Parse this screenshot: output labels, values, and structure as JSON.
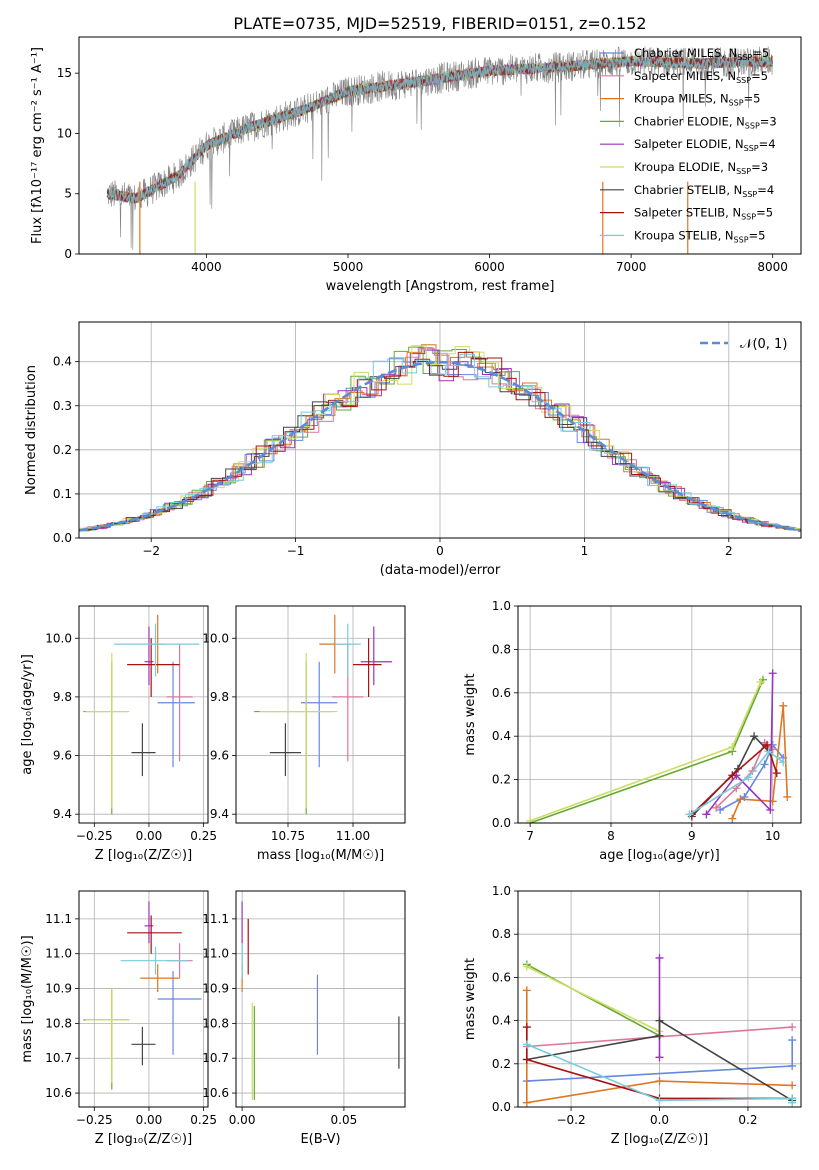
{
  "chart_data": [
    {
      "id": "spectrum",
      "type": "line",
      "title": "PLATE=0735, MJD=52519, FIBERID=0151, z=0.152",
      "xlabel": "wavelength [Angstrom, rest frame]",
      "ylabel": "Flux [fλ10⁻¹⁷ erg cm⁻² s⁻¹ A⁻¹]",
      "xlim": [
        3100,
        8200
      ],
      "ylim": [
        0,
        18
      ],
      "xticks": [
        4000,
        5000,
        6000,
        7000,
        8000
      ],
      "yticks": [
        0,
        5,
        10,
        15
      ],
      "data_trace": {
        "name": "data",
        "color": "#808080",
        "x_range": [
          3300,
          8000
        ],
        "approx_envelope": [
          [
            3300,
            5
          ],
          [
            3500,
            4.6
          ],
          [
            3800,
            6.5
          ],
          [
            4000,
            9
          ],
          [
            4300,
            10.5
          ],
          [
            4700,
            12
          ],
          [
            5000,
            13.5
          ],
          [
            5500,
            14.3
          ],
          [
            6000,
            15.2
          ],
          [
            6500,
            15.5
          ],
          [
            7000,
            16
          ],
          [
            7500,
            15.8
          ],
          [
            8000,
            16
          ]
        ]
      },
      "legend_position": "upper right",
      "series": [
        {
          "name": "Chabrier MILES, N",
          "sub": "SSP",
          "suffix": "=5",
          "color": "#6688dd"
        },
        {
          "name": "Salpeter MILES, N",
          "sub": "SSP",
          "suffix": "=5",
          "color": "#dd7799"
        },
        {
          "name": "Kroupa MILES, N",
          "sub": "SSP",
          "suffix": "=5",
          "color": "#dd7722"
        },
        {
          "name": "Chabrier ELODIE, N",
          "sub": "SSP",
          "suffix": "=3",
          "color": "#66aa33"
        },
        {
          "name": "Salpeter ELODIE, N",
          "sub": "SSP",
          "suffix": "=4",
          "color": "#9933bb"
        },
        {
          "name": "Kroupa ELODIE, N",
          "sub": "SSP",
          "suffix": "=3",
          "color": "#ccdd66"
        },
        {
          "name": "Chabrier STELIB, N",
          "sub": "SSP",
          "suffix": "=4",
          "color": "#444444"
        },
        {
          "name": "Salpeter STELIB, N",
          "sub": "SSP",
          "suffix": "=5",
          "color": "#aa1111"
        },
        {
          "name": "Kroupa STELIB, N",
          "sub": "SSP",
          "suffix": "=5",
          "color": "#77ccdd"
        }
      ]
    },
    {
      "id": "residuals",
      "type": "histogram",
      "xlabel": "(data-model)/error",
      "ylabel": "Normed distribution",
      "xlim": [
        -2.5,
        2.5
      ],
      "ylim": [
        0,
        0.49
      ],
      "xticks": [
        -2,
        -1,
        0,
        1,
        2
      ],
      "xtick_labels": [
        "−2",
        "−1",
        "0",
        "1",
        "2"
      ],
      "yticks": [
        0.0,
        0.1,
        0.2,
        0.3,
        0.4
      ],
      "grid": true,
      "legend_position": "upper right",
      "legend_label": "𝒩(0, 1)",
      "gaussian": {
        "mean": 0,
        "sigma": 1,
        "color": "#5b8bd6"
      },
      "bin_width": 0.1
    },
    {
      "id": "age-vs-Z",
      "type": "errorbar",
      "xlabel": "Z [log₁₀(Z/Z☉)]",
      "ylabel": "age  [log₁₀(age/yr)]",
      "xlim": [
        -0.32,
        0.27
      ],
      "ylim": [
        9.37,
        10.11
      ],
      "xticks": [
        -0.25,
        0.0,
        0.25
      ],
      "xtick_labels": [
        "−0.25",
        "0.00",
        "0.25"
      ],
      "yticks": [
        9.4,
        9.6,
        9.8,
        10.0
      ],
      "grid": true,
      "points": [
        {
          "x": 0.11,
          "xerr": [
            0.07,
            0.1
          ],
          "y": 9.78,
          "yerr": [
            0.22,
            0.14
          ],
          "color": "#6688dd"
        },
        {
          "x": 0.14,
          "xerr": [
            0.06,
            0.06
          ],
          "y": 9.8,
          "yerr": [
            0.22,
            0.18
          ],
          "color": "#dd7799"
        },
        {
          "x": 0.04,
          "xerr": [
            0.04,
            0.03
          ],
          "y": 9.98,
          "yerr": [
            0.1,
            0.1
          ],
          "color": "#dd7722"
        },
        {
          "x": -0.17,
          "xerr": [
            0.13,
            0.07
          ],
          "y": 9.75,
          "yerr": [
            0.35,
            0.17
          ],
          "color": "#66aa33"
        },
        {
          "x": 0.0,
          "xerr": [
            0.02,
            0.02
          ],
          "y": 9.92,
          "yerr": [
            0.08,
            0.12
          ],
          "color": "#9933bb"
        },
        {
          "x": -0.17,
          "xerr": [
            0.12,
            0.08
          ],
          "y": 9.75,
          "yerr": [
            0.33,
            0.2
          ],
          "color": "#ccdd66"
        },
        {
          "x": -0.03,
          "xerr": [
            0.05,
            0.06
          ],
          "y": 9.61,
          "yerr": [
            0.08,
            0.1
          ],
          "color": "#444444"
        },
        {
          "x": 0.01,
          "xerr": [
            0.11,
            0.13
          ],
          "y": 9.91,
          "yerr": [
            0.11,
            0.09
          ],
          "color": "#aa1111"
        },
        {
          "x": 0.03,
          "xerr": [
            0.19,
            0.2
          ],
          "y": 9.98,
          "yerr": [
            0.11,
            0.07
          ],
          "color": "#77ccdd"
        }
      ]
    },
    {
      "id": "age-vs-mass",
      "type": "errorbar",
      "xlabel": "mass [log₁₀(M/M☉)]",
      "xlim": [
        10.55,
        11.2
      ],
      "ylim": [
        9.37,
        10.11
      ],
      "xticks": [
        10.75,
        11.0
      ],
      "xtick_labels": [
        "10.75",
        "11.00"
      ],
      "yticks": [
        9.4,
        9.6,
        9.8,
        10.0
      ],
      "grid": true,
      "points": [
        {
          "x": 10.87,
          "xerr": [
            0.07,
            0.07
          ],
          "y": 9.78,
          "yerr": [
            0.22,
            0.14
          ],
          "color": "#6688dd"
        },
        {
          "x": 10.98,
          "xerr": [
            0.06,
            0.06
          ],
          "y": 9.8,
          "yerr": [
            0.22,
            0.18
          ],
          "color": "#dd7799"
        },
        {
          "x": 10.93,
          "xerr": [
            0.06,
            0.06
          ],
          "y": 9.98,
          "yerr": [
            0.1,
            0.1
          ],
          "color": "#dd7722"
        },
        {
          "x": 10.82,
          "xerr": [
            0.2,
            0.1
          ],
          "y": 9.75,
          "yerr": [
            0.35,
            0.17
          ],
          "color": "#66aa33"
        },
        {
          "x": 11.08,
          "xerr": [
            0.05,
            0.07
          ],
          "y": 9.92,
          "yerr": [
            0.08,
            0.12
          ],
          "color": "#9933bb"
        },
        {
          "x": 10.82,
          "xerr": [
            0.18,
            0.12
          ],
          "y": 9.75,
          "yerr": [
            0.33,
            0.2
          ],
          "color": "#ccdd66"
        },
        {
          "x": 10.74,
          "xerr": [
            0.06,
            0.06
          ],
          "y": 9.61,
          "yerr": [
            0.08,
            0.1
          ],
          "color": "#444444"
        },
        {
          "x": 11.06,
          "xerr": [
            0.06,
            0.05
          ],
          "y": 9.91,
          "yerr": [
            0.11,
            0.09
          ],
          "color": "#aa1111"
        },
        {
          "x": 10.98,
          "xerr": [
            0.05,
            0.05
          ],
          "y": 9.98,
          "yerr": [
            0.11,
            0.07
          ],
          "color": "#77ccdd"
        }
      ]
    },
    {
      "id": "massweight-vs-age",
      "type": "line",
      "xlabel": "age  [log₁₀(age/yr)]",
      "ylabel": "mass weight",
      "xlim": [
        6.85,
        10.35
      ],
      "ylim": [
        0,
        1
      ],
      "xticks": [
        7,
        8,
        9,
        10
      ],
      "yticks": [
        0.0,
        0.2,
        0.4,
        0.6,
        0.8,
        1.0
      ],
      "grid": true,
      "series": [
        {
          "color": "#6688dd",
          "points": [
            [
              9.35,
              0.06
            ],
            [
              9.65,
              0.12
            ],
            [
              9.9,
              0.27
            ],
            [
              10.0,
              0.36
            ],
            [
              10.13,
              0.3
            ]
          ]
        },
        {
          "color": "#dd7799",
          "points": [
            [
              9.3,
              0.07
            ],
            [
              9.55,
              0.16
            ],
            [
              9.75,
              0.24
            ],
            [
              9.9,
              0.37
            ],
            [
              10.0,
              0.34
            ]
          ]
        },
        {
          "color": "#dd7722",
          "points": [
            [
              9.5,
              0.02
            ],
            [
              9.6,
              0.11
            ],
            [
              10.0,
              0.1
            ],
            [
              10.13,
              0.54
            ],
            [
              10.18,
              0.12
            ]
          ]
        },
        {
          "color": "#66aa33",
          "points": [
            [
              7.0,
              0.0
            ],
            [
              9.5,
              0.33
            ],
            [
              9.88,
              0.66
            ]
          ]
        },
        {
          "color": "#9933bb",
          "points": [
            [
              9.18,
              0.04
            ],
            [
              9.55,
              0.22
            ],
            [
              9.97,
              0.06
            ],
            [
              10.0,
              0.69
            ]
          ]
        },
        {
          "color": "#ccdd66",
          "points": [
            [
              7.0,
              0.01
            ],
            [
              9.5,
              0.35
            ],
            [
              9.85,
              0.65
            ]
          ]
        },
        {
          "color": "#444444",
          "points": [
            [
              9.0,
              0.03
            ],
            [
              9.57,
              0.25
            ],
            [
              9.77,
              0.4
            ],
            [
              9.95,
              0.33
            ]
          ]
        },
        {
          "color": "#aa1111",
          "points": [
            [
              9.0,
              0.04
            ],
            [
              9.5,
              0.22
            ],
            [
              9.93,
              0.36
            ],
            [
              10.05,
              0.23
            ]
          ]
        },
        {
          "color": "#77ccdd",
          "points": [
            [
              8.97,
              0.04
            ],
            [
              9.7,
              0.21
            ],
            [
              9.95,
              0.33
            ],
            [
              10.13,
              0.28
            ]
          ]
        }
      ]
    },
    {
      "id": "mass-vs-Z",
      "type": "errorbar",
      "xlabel": "Z [log₁₀(Z/Z☉)]",
      "ylabel": "mass [log₁₀(M/M☉)]",
      "xlim": [
        -0.32,
        0.27
      ],
      "ylim": [
        10.56,
        11.18
      ],
      "xticks": [
        -0.25,
        0.0,
        0.25
      ],
      "xtick_labels": [
        "−0.25",
        "0.00",
        "0.25"
      ],
      "yticks": [
        10.6,
        10.7,
        10.8,
        10.9,
        11.0,
        11.1
      ],
      "grid": true,
      "points": [
        {
          "x": 0.11,
          "xerr": [
            0.07,
            0.13
          ],
          "y": 10.87,
          "yerr": [
            0.16,
            0.08
          ],
          "color": "#6688dd"
        },
        {
          "x": 0.14,
          "xerr": [
            0.06,
            0.06
          ],
          "y": 10.98,
          "yerr": [
            0.05,
            0.05
          ],
          "color": "#dd7799"
        },
        {
          "x": 0.04,
          "xerr": [
            0.08,
            0.1
          ],
          "y": 10.93,
          "yerr": [
            0.04,
            0.04
          ],
          "color": "#dd7722"
        },
        {
          "x": -0.17,
          "xerr": [
            0.13,
            0.08
          ],
          "y": 10.81,
          "yerr": [
            0.2,
            0.09
          ],
          "color": "#66aa33"
        },
        {
          "x": 0.0,
          "xerr": [
            0.02,
            0.02
          ],
          "y": 11.08,
          "yerr": [
            0.05,
            0.07
          ],
          "color": "#9933bb"
        },
        {
          "x": -0.17,
          "xerr": [
            0.12,
            0.08
          ],
          "y": 10.81,
          "yerr": [
            0.18,
            0.09
          ],
          "color": "#ccdd66"
        },
        {
          "x": -0.03,
          "xerr": [
            0.05,
            0.06
          ],
          "y": 10.74,
          "yerr": [
            0.06,
            0.05
          ],
          "color": "#444444"
        },
        {
          "x": 0.01,
          "xerr": [
            0.11,
            0.14
          ],
          "y": 11.06,
          "yerr": [
            0.06,
            0.05
          ],
          "color": "#aa1111"
        },
        {
          "x": 0.03,
          "xerr": [
            0.16,
            0.15
          ],
          "y": 10.98,
          "yerr": [
            0.04,
            0.04
          ],
          "color": "#77ccdd"
        }
      ]
    },
    {
      "id": "mass-vs-EBV",
      "type": "errorbar",
      "xlabel": "E(B-V)",
      "xlim": [
        -0.003,
        0.08
      ],
      "ylim": [
        10.56,
        11.18
      ],
      "xticks": [
        0.0,
        0.05
      ],
      "xtick_labels": [
        "0.00",
        "0.05"
      ],
      "yticks": [
        10.6,
        10.7,
        10.8,
        10.9,
        11.0,
        11.1
      ],
      "grid": true,
      "points": [
        {
          "x": 0.037,
          "y": 10.82,
          "yerr": [
            0.11,
            0.12
          ],
          "color": "#6688dd"
        },
        {
          "x": 0.0,
          "y": 10.98,
          "yerr": [
            0.05,
            0.05
          ],
          "color": "#dd7799"
        },
        {
          "x": 0.0,
          "y": 10.93,
          "yerr": [
            0.04,
            0.04
          ],
          "color": "#dd7722"
        },
        {
          "x": 0.006,
          "y": 10.75,
          "yerr": [
            0.17,
            0.1
          ],
          "color": "#66aa33"
        },
        {
          "x": 0.0,
          "y": 11.08,
          "yerr": [
            0.05,
            0.07
          ],
          "color": "#9933bb"
        },
        {
          "x": 0.005,
          "y": 10.74,
          "yerr": [
            0.16,
            0.12
          ],
          "color": "#ccdd66"
        },
        {
          "x": 0.077,
          "y": 10.74,
          "yerr": [
            0.07,
            0.08
          ],
          "color": "#444444"
        },
        {
          "x": 0.003,
          "y": 11.02,
          "yerr": [
            0.08,
            0.08
          ],
          "color": "#aa1111"
        },
        {
          "x": 0.0,
          "y": 10.98,
          "yerr": [
            0.05,
            0.05
          ],
          "color": "#77ccdd"
        }
      ]
    },
    {
      "id": "massweight-vs-Z",
      "type": "line",
      "xlabel": "Z [log₁₀(Z/Z☉)]",
      "ylabel": "mass weight",
      "xlim": [
        -0.32,
        0.32
      ],
      "ylim": [
        0,
        1
      ],
      "xticks": [
        -0.2,
        0.0,
        0.2
      ],
      "xtick_labels": [
        "−0.2",
        "0.0",
        "0.2"
      ],
      "yticks": [
        0.0,
        0.2,
        0.4,
        0.6,
        0.8,
        1.0
      ],
      "grid": true,
      "series": [
        {
          "color": "#6688dd",
          "points": [
            [
              -0.3,
              0.12
            ],
            [
              0.3,
              0.19
            ],
            [
              0.3,
              0.31
            ]
          ]
        },
        {
          "color": "#dd7799",
          "points": [
            [
              -0.3,
              0.28
            ],
            [
              0.3,
              0.37
            ]
          ]
        },
        {
          "color": "#dd7722",
          "points": [
            [
              -0.3,
              0.54
            ],
            [
              -0.3,
              0.02
            ],
            [
              0.0,
              0.12
            ],
            [
              0.3,
              0.1
            ]
          ]
        },
        {
          "color": "#66aa33",
          "points": [
            [
              -0.3,
              0.66
            ],
            [
              0.0,
              0.33
            ]
          ]
        },
        {
          "color": "#9933bb",
          "points": [
            [
              0.0,
              0.69
            ],
            [
              0.0,
              0.23
            ]
          ]
        },
        {
          "color": "#ccdd66",
          "points": [
            [
              -0.3,
              0.65
            ],
            [
              0.0,
              0.35
            ]
          ]
        },
        {
          "color": "#444444",
          "points": [
            [
              -0.3,
              0.22
            ],
            [
              0.0,
              0.33
            ],
            [
              0.0,
              0.4
            ],
            [
              0.3,
              0.03
            ]
          ]
        },
        {
          "color": "#aa1111",
          "points": [
            [
              -0.3,
              0.37
            ],
            [
              -0.3,
              0.22
            ],
            [
              0.0,
              0.04
            ],
            [
              0.3,
              0.04
            ]
          ]
        },
        {
          "color": "#77ccdd",
          "points": [
            [
              -0.3,
              0.29
            ],
            [
              0.0,
              0.03
            ],
            [
              0.3,
              0.04
            ],
            [
              0.3,
              0.02
            ]
          ]
        }
      ]
    }
  ]
}
